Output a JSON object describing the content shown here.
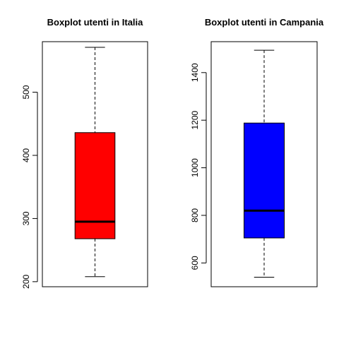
{
  "chart_data": [
    {
      "type": "boxplot",
      "title": "Boxplot utenti in Italia",
      "fill": "#ff0000",
      "ylim": [
        192,
        580
      ],
      "yticks": [
        200,
        300,
        400,
        500
      ],
      "box": {
        "min": 208,
        "q1": 268,
        "median": 295,
        "q3": 436,
        "max": 571
      }
    },
    {
      "type": "boxplot",
      "title": "Boxplot utenti in Campania",
      "fill": "#0000ff",
      "ylim": [
        500,
        1530
      ],
      "yticks": [
        600,
        800,
        1000,
        1200,
        1400
      ],
      "box": {
        "min": 540,
        "q1": 705,
        "median": 820,
        "q3": 1188,
        "max": 1494
      }
    }
  ]
}
